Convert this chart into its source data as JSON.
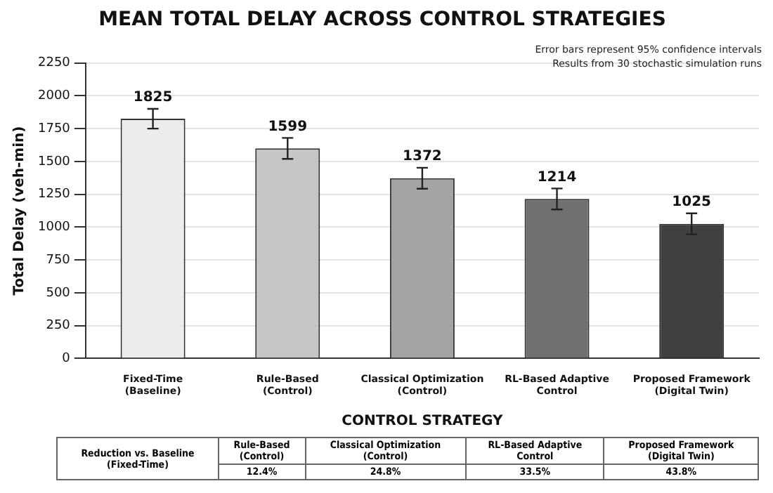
{
  "chart_data": {
    "type": "bar",
    "title": "MEAN TOTAL DELAY ACROSS CONTROL STRATEGIES",
    "xlabel": "CONTROL STRATEGY",
    "ylabel": "Total Delay (veh-min)",
    "categories": [
      "Fixed-Time\n(Baseline)",
      "Rule-Based\n(Control)",
      "Classical Optimization\n(Control)",
      "RL-Based Adaptive\nControl",
      "Proposed Framework\n(Digital Twin)"
    ],
    "values": [
      1825,
      1599,
      1372,
      1214,
      1025
    ],
    "errors": [
      75,
      80,
      80,
      80,
      80
    ],
    "colors": [
      "#ececec",
      "#c6c6c6",
      "#a4a4a4",
      "#707070",
      "#404040"
    ],
    "ylim": [
      0,
      2250
    ],
    "yticks": [
      0,
      250,
      500,
      750,
      1000,
      1250,
      1500,
      1750,
      2000,
      2250
    ],
    "grid": "y",
    "data_labels": true,
    "annotations": [
      "Error bars represent 95% confidence intervals",
      "Results from 30 stochastic simulation runs",
      "Reduction vs. Baseline\n(Fixed-Time)",
      "12.4%",
      "24.8%",
      "33.5%",
      "43.8%"
    ]
  }
}
